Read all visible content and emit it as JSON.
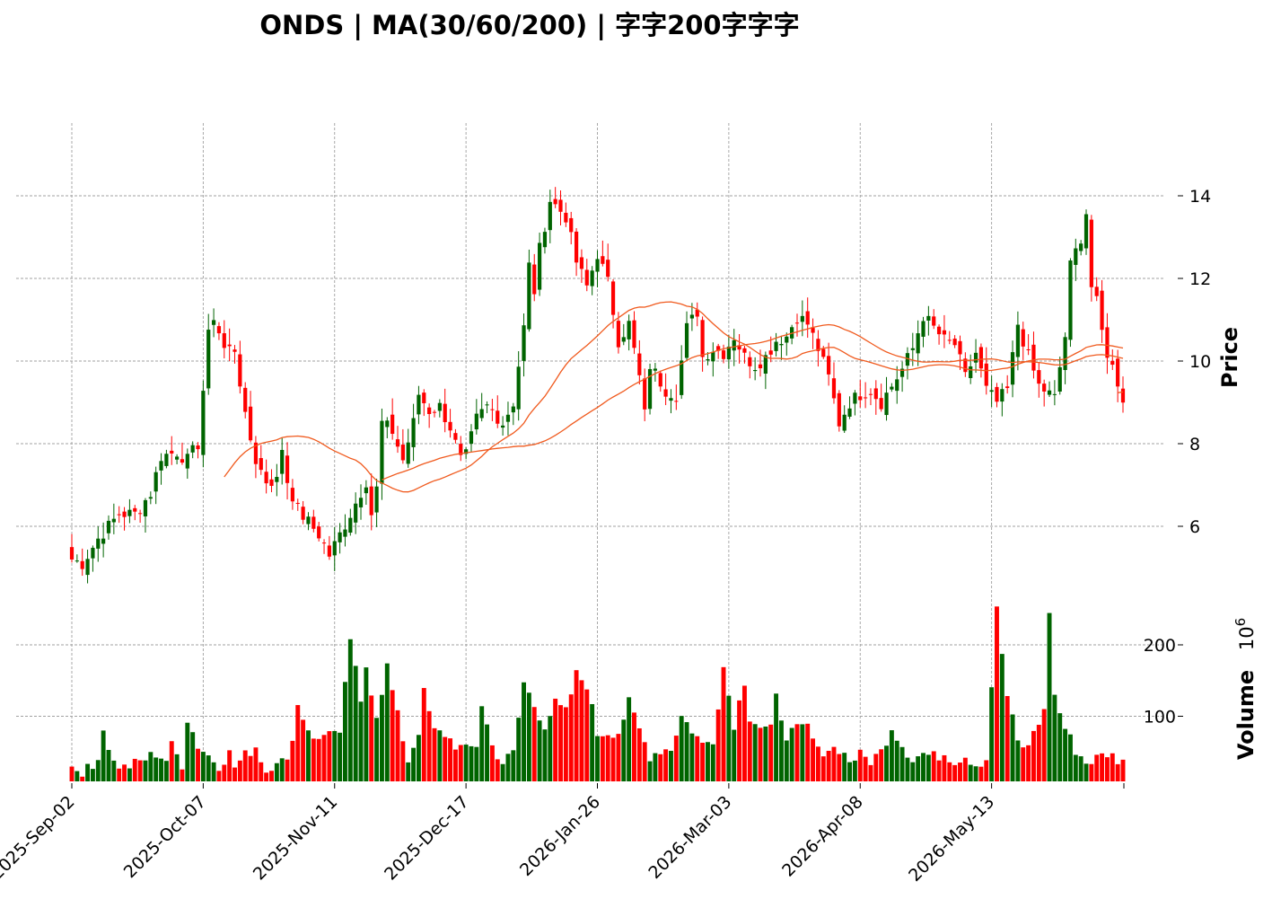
{
  "chart_data": {
    "type": "candlestick",
    "title": "ONDS  |  MA(30/60/200)  |  字字200字字字",
    "price_axis": {
      "label": "Price",
      "ticks": [
        6,
        8,
        10,
        12,
        14
      ],
      "ylim": [
        4.3,
        15.75
      ],
      "position": "right"
    },
    "volume_axis": {
      "label": "Volume",
      "multiplier": "10^6",
      "ticks": [
        100,
        200
      ],
      "ylim": [
        0,
        240
      ]
    },
    "x_tick_labels": [
      "2025-Sep-02",
      "2025-Oct-07",
      "2025-Nov-11",
      "2025-Dec-17",
      "2026-Jan-26",
      "2026-Mar-03",
      "2026-Apr-08",
      "2026-May-13"
    ],
    "x_tick_indices": [
      0,
      25,
      50,
      75,
      100,
      125,
      150,
      175
    ],
    "grid": true,
    "colors": {
      "up": "#006400",
      "down": "#ff0000",
      "ma": "#f05a1e",
      "grid": "#a0a0a0"
    },
    "moving_averages": [
      30,
      60,
      200
    ],
    "num_bars": 201,
    "price_keypoints": [
      [
        0,
        5.2
      ],
      [
        2,
        5.1
      ],
      [
        5,
        5.7
      ],
      [
        9,
        6.3
      ],
      [
        12,
        6.3
      ],
      [
        15,
        6.8
      ],
      [
        17,
        7.7
      ],
      [
        20,
        7.8
      ],
      [
        22,
        7.6
      ],
      [
        24,
        8.0
      ],
      [
        26,
        10.6
      ],
      [
        27,
        11.1
      ],
      [
        29,
        10.3
      ],
      [
        31,
        10.3
      ],
      [
        32,
        9.5
      ],
      [
        33,
        8.6
      ],
      [
        35,
        7.6
      ],
      [
        37,
        7.1
      ],
      [
        39,
        7.1
      ],
      [
        40,
        7.9
      ],
      [
        41,
        7.1
      ],
      [
        43,
        6.4
      ],
      [
        45,
        6.1
      ],
      [
        47,
        5.8
      ],
      [
        49,
        5.3
      ],
      [
        51,
        5.8
      ],
      [
        53,
        6.3
      ],
      [
        56,
        7.1
      ],
      [
        57,
        6.3
      ],
      [
        58,
        6.9
      ],
      [
        59,
        8.5
      ],
      [
        61,
        8.3
      ],
      [
        63,
        7.6
      ],
      [
        65,
        8.5
      ],
      [
        66,
        9.2
      ],
      [
        68,
        8.8
      ],
      [
        70,
        8.9
      ],
      [
        72,
        8.4
      ],
      [
        74,
        7.6
      ],
      [
        75,
        7.7
      ],
      [
        77,
        8.6
      ],
      [
        79,
        8.9
      ],
      [
        80,
        8.8
      ],
      [
        82,
        8.5
      ],
      [
        84,
        9.0
      ],
      [
        86,
        10.8
      ],
      [
        87,
        12.3
      ],
      [
        88,
        11.7
      ],
      [
        89,
        12.7
      ],
      [
        91,
        13.9
      ],
      [
        94,
        13.5
      ],
      [
        96,
        12.4
      ],
      [
        98,
        11.8
      ],
      [
        100,
        12.6
      ],
      [
        102,
        11.9
      ],
      [
        104,
        10.5
      ],
      [
        106,
        10.9
      ],
      [
        108,
        9.6
      ],
      [
        109,
        8.7
      ],
      [
        110,
        9.9
      ],
      [
        113,
        9.3
      ],
      [
        115,
        9.2
      ],
      [
        117,
        10.8
      ],
      [
        119,
        11.2
      ],
      [
        120,
        10.1
      ],
      [
        122,
        10.3
      ],
      [
        124,
        10.2
      ],
      [
        126,
        10.6
      ],
      [
        128,
        10.1
      ],
      [
        130,
        9.9
      ],
      [
        132,
        10.1
      ],
      [
        134,
        10.5
      ],
      [
        136,
        10.6
      ],
      [
        138,
        11.1
      ],
      [
        140,
        10.9
      ],
      [
        142,
        10.3
      ],
      [
        144,
        9.6
      ],
      [
        146,
        8.5
      ],
      [
        148,
        9.0
      ],
      [
        150,
        9.2
      ],
      [
        152,
        9.3
      ],
      [
        154,
        9.0
      ],
      [
        156,
        9.4
      ],
      [
        158,
        9.8
      ],
      [
        160,
        10.3
      ],
      [
        162,
        11.1
      ],
      [
        164,
        10.8
      ],
      [
        166,
        10.5
      ],
      [
        168,
        10.4
      ],
      [
        170,
        9.6
      ],
      [
        172,
        10.2
      ],
      [
        174,
        9.3
      ],
      [
        176,
        9.0
      ],
      [
        178,
        9.3
      ],
      [
        180,
        10.9
      ],
      [
        182,
        10.1
      ],
      [
        184,
        9.4
      ],
      [
        187,
        9.1
      ],
      [
        189,
        10.6
      ],
      [
        190,
        12.3
      ],
      [
        192,
        13.0
      ],
      [
        193,
        13.6
      ],
      [
        194,
        11.8
      ],
      [
        195,
        11.4
      ],
      [
        196,
        10.7
      ],
      [
        197,
        10.2
      ],
      [
        199,
        9.5
      ],
      [
        200,
        9.1
      ]
    ],
    "volume_keypoints": [
      [
        0,
        29
      ],
      [
        2,
        24
      ],
      [
        4,
        26
      ],
      [
        5,
        47
      ],
      [
        6,
        82
      ],
      [
        8,
        35
      ],
      [
        10,
        28
      ],
      [
        12,
        33
      ],
      [
        14,
        40
      ],
      [
        16,
        48
      ],
      [
        18,
        39
      ],
      [
        19,
        58
      ],
      [
        21,
        33
      ],
      [
        22,
        97
      ],
      [
        24,
        59
      ],
      [
        26,
        45
      ],
      [
        28,
        32
      ],
      [
        30,
        48
      ],
      [
        31,
        29
      ],
      [
        33,
        45
      ],
      [
        35,
        58
      ],
      [
        37,
        23
      ],
      [
        39,
        41
      ],
      [
        41,
        33
      ],
      [
        43,
        115
      ],
      [
        45,
        83
      ],
      [
        47,
        64
      ],
      [
        49,
        84
      ],
      [
        51,
        70
      ],
      [
        53,
        210
      ],
      [
        55,
        115
      ],
      [
        56,
        170
      ],
      [
        58,
        103
      ],
      [
        60,
        170
      ],
      [
        62,
        100
      ],
      [
        64,
        38
      ],
      [
        66,
        80
      ],
      [
        67,
        132
      ],
      [
        69,
        78
      ],
      [
        71,
        75
      ],
      [
        73,
        60
      ],
      [
        75,
        52
      ],
      [
        77,
        60
      ],
      [
        78,
        117
      ],
      [
        80,
        58
      ],
      [
        82,
        35
      ],
      [
        84,
        48
      ],
      [
        86,
        147
      ],
      [
        88,
        115
      ],
      [
        90,
        88
      ],
      [
        92,
        117
      ],
      [
        94,
        105
      ],
      [
        96,
        158
      ],
      [
        98,
        145
      ],
      [
        100,
        75
      ],
      [
        102,
        78
      ],
      [
        104,
        78
      ],
      [
        106,
        118
      ],
      [
        108,
        81
      ],
      [
        110,
        45
      ],
      [
        112,
        53
      ],
      [
        114,
        55
      ],
      [
        116,
        100
      ],
      [
        118,
        81
      ],
      [
        120,
        60
      ],
      [
        122,
        68
      ],
      [
        124,
        169
      ],
      [
        126,
        90
      ],
      [
        128,
        150
      ],
      [
        129,
        100
      ],
      [
        131,
        85
      ],
      [
        133,
        80
      ],
      [
        134,
        125
      ],
      [
        136,
        75
      ],
      [
        138,
        80
      ],
      [
        140,
        85
      ],
      [
        142,
        50
      ],
      [
        144,
        55
      ],
      [
        146,
        55
      ],
      [
        148,
        38
      ],
      [
        150,
        45
      ],
      [
        152,
        38
      ],
      [
        154,
        50
      ],
      [
        156,
        85
      ],
      [
        158,
        60
      ],
      [
        160,
        40
      ],
      [
        162,
        48
      ],
      [
        164,
        43
      ],
      [
        166,
        48
      ],
      [
        168,
        38
      ],
      [
        170,
        45
      ],
      [
        172,
        33
      ],
      [
        174,
        40
      ],
      [
        176,
        248
      ],
      [
        178,
        128
      ],
      [
        180,
        63
      ],
      [
        182,
        55
      ],
      [
        183,
        80
      ],
      [
        185,
        105
      ],
      [
        186,
        249
      ],
      [
        187,
        128
      ],
      [
        189,
        83
      ],
      [
        191,
        53
      ],
      [
        193,
        35
      ],
      [
        195,
        41
      ],
      [
        197,
        48
      ],
      [
        199,
        40
      ],
      [
        200,
        40
      ]
    ]
  }
}
